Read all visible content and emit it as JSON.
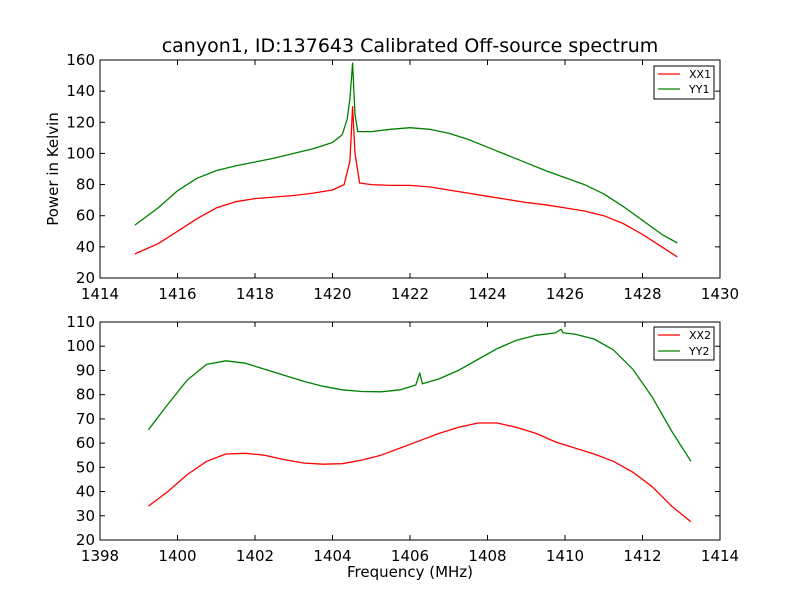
{
  "figure": {
    "title": "canyon1, ID:137643 Calibrated Off-source spectrum"
  },
  "chart_data": [
    {
      "type": "line",
      "title": "canyon1, ID:137643 Calibrated Off-source spectrum",
      "xlabel": "",
      "ylabel": "Power in Kelvin",
      "xlim": [
        1414,
        1430
      ],
      "ylim": [
        20,
        160
      ],
      "xticks": [
        "1414",
        "1416",
        "1418",
        "1420",
        "1422",
        "1424",
        "1426",
        "1428",
        "1430"
      ],
      "yticks": [
        "20",
        "40",
        "60",
        "80",
        "100",
        "120",
        "140",
        "160"
      ],
      "grid": false,
      "legend_position": "top-right",
      "series": [
        {
          "name": "XX1",
          "color": "#ff0000",
          "points": [
            [
              1414.9,
              35.5
            ],
            [
              1415.5,
              42
            ],
            [
              1416,
              50
            ],
            [
              1416.5,
              58
            ],
            [
              1417,
              65
            ],
            [
              1417.5,
              69
            ],
            [
              1418,
              71
            ],
            [
              1418.5,
              72
            ],
            [
              1419,
              73
            ],
            [
              1419.5,
              74.5
            ],
            [
              1420,
              76.5
            ],
            [
              1420.3,
              80
            ],
            [
              1420.45,
              95
            ],
            [
              1420.52,
              130
            ],
            [
              1420.58,
              100
            ],
            [
              1420.7,
              81
            ],
            [
              1421,
              80
            ],
            [
              1421.5,
              79.5
            ],
            [
              1422,
              79.5
            ],
            [
              1422.5,
              78.5
            ],
            [
              1423,
              76.5
            ],
            [
              1423.5,
              74.5
            ],
            [
              1424,
              72.5
            ],
            [
              1424.5,
              70.5
            ],
            [
              1425,
              68.5
            ],
            [
              1425.5,
              67
            ],
            [
              1426,
              65
            ],
            [
              1426.5,
              63
            ],
            [
              1427,
              60
            ],
            [
              1427.5,
              55
            ],
            [
              1428,
              48
            ],
            [
              1428.5,
              40
            ],
            [
              1428.9,
              33.5
            ]
          ]
        },
        {
          "name": "YY1",
          "color": "#008000",
          "points": [
            [
              1414.9,
              54
            ],
            [
              1415.5,
              65
            ],
            [
              1416,
              76
            ],
            [
              1416.5,
              84
            ],
            [
              1417,
              89
            ],
            [
              1417.5,
              92
            ],
            [
              1418,
              94.5
            ],
            [
              1418.5,
              97
            ],
            [
              1419,
              100
            ],
            [
              1419.5,
              103
            ],
            [
              1420,
              107
            ],
            [
              1420.25,
              112
            ],
            [
              1420.38,
              122
            ],
            [
              1420.45,
              135
            ],
            [
              1420.52,
              158
            ],
            [
              1420.58,
              125
            ],
            [
              1420.65,
              114
            ],
            [
              1421,
              114
            ],
            [
              1421.5,
              115.5
            ],
            [
              1422,
              116.5
            ],
            [
              1422.5,
              115.5
            ],
            [
              1423,
              113
            ],
            [
              1423.5,
              109
            ],
            [
              1424,
              104
            ],
            [
              1424.5,
              99
            ],
            [
              1425,
              94
            ],
            [
              1425.5,
              89
            ],
            [
              1426,
              84.5
            ],
            [
              1426.5,
              80
            ],
            [
              1427,
              74
            ],
            [
              1427.5,
              66
            ],
            [
              1428,
              57
            ],
            [
              1428.5,
              48
            ],
            [
              1428.9,
              42.5
            ]
          ]
        }
      ]
    },
    {
      "type": "line",
      "title": "",
      "xlabel": "Frequency (MHz)",
      "ylabel": "",
      "xlim": [
        1398,
        1414
      ],
      "ylim": [
        20,
        110
      ],
      "xticks": [
        "1398",
        "1400",
        "1402",
        "1404",
        "1406",
        "1408",
        "1410",
        "1412",
        "1414"
      ],
      "yticks": [
        "20",
        "30",
        "40",
        "50",
        "60",
        "70",
        "80",
        "90",
        "100",
        "110"
      ],
      "grid": false,
      "legend_position": "top-right",
      "series": [
        {
          "name": "XX2",
          "color": "#ff0000",
          "points": [
            [
              1399.25,
              34
            ],
            [
              1399.75,
              40
            ],
            [
              1400.25,
              47
            ],
            [
              1400.75,
              52.5
            ],
            [
              1401.25,
              55.5
            ],
            [
              1401.75,
              55.8
            ],
            [
              1402.25,
              55
            ],
            [
              1402.75,
              53.2
            ],
            [
              1403.25,
              51.8
            ],
            [
              1403.75,
              51.3
            ],
            [
              1404.25,
              51.5
            ],
            [
              1404.75,
              53
            ],
            [
              1405.25,
              55
            ],
            [
              1405.75,
              58
            ],
            [
              1406.25,
              61
            ],
            [
              1406.75,
              64
            ],
            [
              1407.25,
              66.5
            ],
            [
              1407.75,
              68.3
            ],
            [
              1408.25,
              68.3
            ],
            [
              1408.75,
              66.5
            ],
            [
              1409.25,
              64
            ],
            [
              1409.75,
              60.5
            ],
            [
              1410.25,
              58
            ],
            [
              1410.75,
              55.5
            ],
            [
              1411.25,
              52.5
            ],
            [
              1411.75,
              48
            ],
            [
              1412.25,
              42
            ],
            [
              1412.75,
              34
            ],
            [
              1413.25,
              27.5
            ]
          ]
        },
        {
          "name": "YY2",
          "color": "#008000",
          "points": [
            [
              1399.25,
              65.5
            ],
            [
              1399.75,
              76
            ],
            [
              1400.25,
              86
            ],
            [
              1400.75,
              92.5
            ],
            [
              1401.25,
              94
            ],
            [
              1401.75,
              93
            ],
            [
              1402.25,
              90.5
            ],
            [
              1402.75,
              88
            ],
            [
              1403.25,
              85.5
            ],
            [
              1403.75,
              83.5
            ],
            [
              1404.25,
              82
            ],
            [
              1404.75,
              81.3
            ],
            [
              1405.25,
              81.2
            ],
            [
              1405.75,
              82
            ],
            [
              1406.15,
              84
            ],
            [
              1406.25,
              89
            ],
            [
              1406.32,
              84.5
            ],
            [
              1406.75,
              86.5
            ],
            [
              1407.25,
              90
            ],
            [
              1407.75,
              94.5
            ],
            [
              1408.25,
              99
            ],
            [
              1408.75,
              102.5
            ],
            [
              1409.25,
              104.5
            ],
            [
              1409.75,
              105.5
            ],
            [
              1409.9,
              107
            ],
            [
              1409.95,
              105.5
            ],
            [
              1410.25,
              105
            ],
            [
              1410.75,
              103
            ],
            [
              1411.25,
              98.5
            ],
            [
              1411.75,
              90.5
            ],
            [
              1412.25,
              79
            ],
            [
              1412.75,
              65
            ],
            [
              1413.25,
              52.5
            ]
          ]
        }
      ]
    }
  ]
}
